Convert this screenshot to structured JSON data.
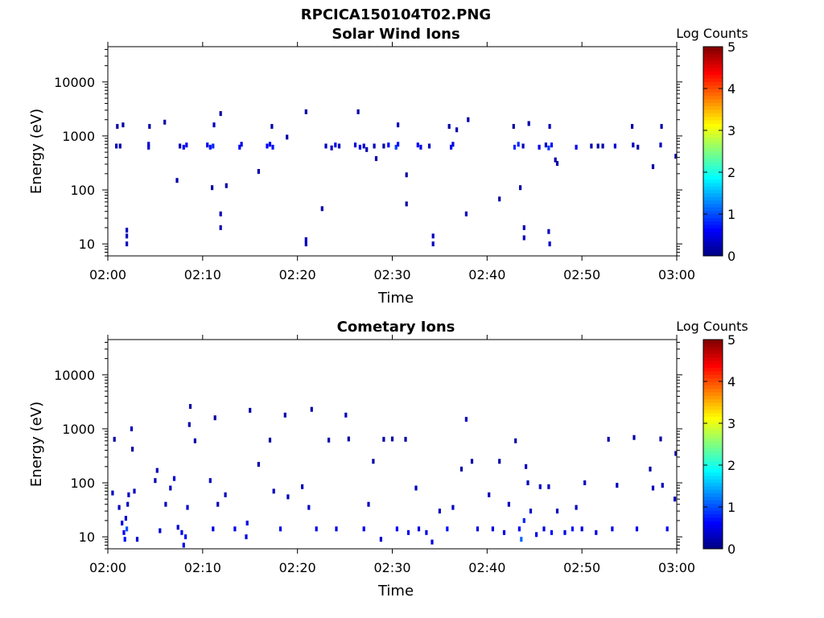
{
  "figure": {
    "filename": "RPCICA150104T02.PNG"
  },
  "chart_data": [
    {
      "type": "heatmap",
      "title": "Solar Wind Ions",
      "xlabel": "Time",
      "ylabel": "Energy (eV)",
      "xlim": [
        "02:00",
        "03:00"
      ],
      "ylim": [
        6,
        45000
      ],
      "y_scale": "log",
      "x_ticks": [
        "02:00",
        "02:10",
        "02:20",
        "02:30",
        "02:40",
        "02:50",
        "03:00"
      ],
      "y_ticks": [
        {
          "value": 10,
          "label": "10"
        },
        {
          "value": 100,
          "label": "100"
        },
        {
          "value": 1000,
          "label": "1000"
        },
        {
          "value": 10000,
          "label": "10000"
        }
      ],
      "colorbar": {
        "label": "Log Counts",
        "min": 0,
        "max": 5,
        "ticks": [
          "0",
          "1",
          "2",
          "3",
          "4",
          "5"
        ],
        "colormap": "jet"
      },
      "grid": false,
      "points": [
        {
          "t": 0.9,
          "e": 650,
          "v": 0.3
        },
        {
          "t": 1.0,
          "e": 1500,
          "v": 0.2
        },
        {
          "t": 1.3,
          "e": 650,
          "v": 0.2
        },
        {
          "t": 1.6,
          "e": 1600,
          "v": 0.2
        },
        {
          "t": 2.0,
          "e": 10,
          "v": 0.3
        },
        {
          "t": 2.0,
          "e": 14,
          "v": 0.3
        },
        {
          "t": 2.0,
          "e": 18,
          "v": 0.3
        },
        {
          "t": 4.3,
          "e": 620,
          "v": 0.4
        },
        {
          "t": 4.3,
          "e": 700,
          "v": 0.4
        },
        {
          "t": 4.4,
          "e": 1500,
          "v": 0.2
        },
        {
          "t": 6.0,
          "e": 1800,
          "v": 0.2
        },
        {
          "t": 7.3,
          "e": 150,
          "v": 0.2
        },
        {
          "t": 7.6,
          "e": 650,
          "v": 0.3
        },
        {
          "t": 8.0,
          "e": 620,
          "v": 0.6
        },
        {
          "t": 8.3,
          "e": 680,
          "v": 0.5
        },
        {
          "t": 10.5,
          "e": 680,
          "v": 0.5
        },
        {
          "t": 10.8,
          "e": 620,
          "v": 0.7
        },
        {
          "t": 11.0,
          "e": 110,
          "v": 0.2
        },
        {
          "t": 11.1,
          "e": 650,
          "v": 0.8
        },
        {
          "t": 11.2,
          "e": 1600,
          "v": 0.3
        },
        {
          "t": 11.9,
          "e": 2600,
          "v": 0.2
        },
        {
          "t": 11.9,
          "e": 36,
          "v": 0.3
        },
        {
          "t": 11.9,
          "e": 20,
          "v": 0.3
        },
        {
          "t": 12.5,
          "e": 120,
          "v": 0.2
        },
        {
          "t": 13.9,
          "e": 620,
          "v": 0.6
        },
        {
          "t": 14.1,
          "e": 700,
          "v": 0.5
        },
        {
          "t": 15.9,
          "e": 220,
          "v": 0.2
        },
        {
          "t": 16.8,
          "e": 650,
          "v": 0.6
        },
        {
          "t": 17.1,
          "e": 700,
          "v": 0.6
        },
        {
          "t": 17.3,
          "e": 1500,
          "v": 0.2
        },
        {
          "t": 17.4,
          "e": 620,
          "v": 0.7
        },
        {
          "t": 18.9,
          "e": 950,
          "v": 0.2
        },
        {
          "t": 20.9,
          "e": 2800,
          "v": 0.2
        },
        {
          "t": 20.9,
          "e": 10,
          "v": 0.3
        },
        {
          "t": 20.9,
          "e": 12,
          "v": 0.3
        },
        {
          "t": 22.6,
          "e": 45,
          "v": 0.2
        },
        {
          "t": 23.0,
          "e": 650,
          "v": 0.3
        },
        {
          "t": 23.6,
          "e": 600,
          "v": 0.3
        },
        {
          "t": 24.0,
          "e": 680,
          "v": 0.5
        },
        {
          "t": 24.4,
          "e": 650,
          "v": 0.3
        },
        {
          "t": 26.1,
          "e": 680,
          "v": 0.4
        },
        {
          "t": 26.4,
          "e": 2800,
          "v": 0.2
        },
        {
          "t": 26.6,
          "e": 620,
          "v": 0.6
        },
        {
          "t": 27.0,
          "e": 650,
          "v": 0.4
        },
        {
          "t": 27.3,
          "e": 560,
          "v": 0.2
        },
        {
          "t": 28.1,
          "e": 650,
          "v": 0.3
        },
        {
          "t": 28.3,
          "e": 380,
          "v": 0.2
        },
        {
          "t": 29.1,
          "e": 650,
          "v": 0.2
        },
        {
          "t": 29.6,
          "e": 680,
          "v": 0.6
        },
        {
          "t": 30.4,
          "e": 620,
          "v": 0.9
        },
        {
          "t": 30.6,
          "e": 700,
          "v": 0.7
        },
        {
          "t": 30.6,
          "e": 1600,
          "v": 0.3
        },
        {
          "t": 31.5,
          "e": 190,
          "v": 0.2
        },
        {
          "t": 31.5,
          "e": 55,
          "v": 0.2
        },
        {
          "t": 32.7,
          "e": 680,
          "v": 0.6
        },
        {
          "t": 33.0,
          "e": 620,
          "v": 0.5
        },
        {
          "t": 33.9,
          "e": 650,
          "v": 0.3
        },
        {
          "t": 34.3,
          "e": 10,
          "v": 0.3
        },
        {
          "t": 34.3,
          "e": 14,
          "v": 0.3
        },
        {
          "t": 36.0,
          "e": 1500,
          "v": 0.2
        },
        {
          "t": 36.2,
          "e": 620,
          "v": 0.6
        },
        {
          "t": 36.4,
          "e": 700,
          "v": 0.5
        },
        {
          "t": 36.8,
          "e": 1300,
          "v": 0.2
        },
        {
          "t": 37.8,
          "e": 36,
          "v": 0.3
        },
        {
          "t": 38.0,
          "e": 2000,
          "v": 0.2
        },
        {
          "t": 41.3,
          "e": 68,
          "v": 0.2
        },
        {
          "t": 42.8,
          "e": 1500,
          "v": 0.2
        },
        {
          "t": 42.9,
          "e": 620,
          "v": 0.8
        },
        {
          "t": 43.3,
          "e": 700,
          "v": 0.8
        },
        {
          "t": 43.5,
          "e": 110,
          "v": 0.2
        },
        {
          "t": 43.8,
          "e": 650,
          "v": 0.3
        },
        {
          "t": 43.9,
          "e": 13,
          "v": 0.3
        },
        {
          "t": 43.9,
          "e": 20,
          "v": 0.3
        },
        {
          "t": 44.4,
          "e": 1700,
          "v": 0.2
        },
        {
          "t": 45.5,
          "e": 620,
          "v": 0.5
        },
        {
          "t": 46.2,
          "e": 680,
          "v": 0.3
        },
        {
          "t": 46.5,
          "e": 600,
          "v": 0.9
        },
        {
          "t": 46.6,
          "e": 1500,
          "v": 0.3
        },
        {
          "t": 46.5,
          "e": 17,
          "v": 0.3
        },
        {
          "t": 46.6,
          "e": 10,
          "v": 0.4
        },
        {
          "t": 46.8,
          "e": 680,
          "v": 0.7
        },
        {
          "t": 47.2,
          "e": 360,
          "v": 0.2
        },
        {
          "t": 47.4,
          "e": 310,
          "v": 0.2
        },
        {
          "t": 49.4,
          "e": 620,
          "v": 0.5
        },
        {
          "t": 51.0,
          "e": 650,
          "v": 0.2
        },
        {
          "t": 51.7,
          "e": 650,
          "v": 0.2
        },
        {
          "t": 52.2,
          "e": 650,
          "v": 0.2
        },
        {
          "t": 53.5,
          "e": 650,
          "v": 0.4
        },
        {
          "t": 55.3,
          "e": 1500,
          "v": 0.2
        },
        {
          "t": 55.4,
          "e": 680,
          "v": 0.3
        },
        {
          "t": 55.9,
          "e": 620,
          "v": 0.2
        },
        {
          "t": 57.5,
          "e": 270,
          "v": 0.2
        },
        {
          "t": 58.4,
          "e": 1500,
          "v": 0.2
        },
        {
          "t": 58.3,
          "e": 680,
          "v": 0.3
        },
        {
          "t": 59.9,
          "e": 420,
          "v": 0.2
        }
      ]
    },
    {
      "type": "heatmap",
      "title": "Cometary Ions",
      "xlabel": "Time",
      "ylabel": "Energy (eV)",
      "xlim": [
        "02:00",
        "03:00"
      ],
      "ylim": [
        6,
        45000
      ],
      "y_scale": "log",
      "x_ticks": [
        "02:00",
        "02:10",
        "02:20",
        "02:30",
        "02:40",
        "02:50",
        "03:00"
      ],
      "y_ticks": [
        {
          "value": 10,
          "label": "10"
        },
        {
          "value": 100,
          "label": "100"
        },
        {
          "value": 1000,
          "label": "1000"
        },
        {
          "value": 10000,
          "label": "10000"
        }
      ],
      "colorbar": {
        "label": "Log Counts",
        "min": 0,
        "max": 5,
        "ticks": [
          "0",
          "1",
          "2",
          "3",
          "4",
          "5"
        ],
        "colormap": "jet"
      },
      "grid": false,
      "points": [
        {
          "t": 0.5,
          "e": 65,
          "v": 0.3
        },
        {
          "t": 0.7,
          "e": 640,
          "v": 0.2
        },
        {
          "t": 1.2,
          "e": 35,
          "v": 0.3
        },
        {
          "t": 1.5,
          "e": 18,
          "v": 0.5
        },
        {
          "t": 1.7,
          "e": 12,
          "v": 0.6
        },
        {
          "t": 1.8,
          "e": 9,
          "v": 0.7
        },
        {
          "t": 1.9,
          "e": 22,
          "v": 0.4
        },
        {
          "t": 2.0,
          "e": 14,
          "v": 1.0
        },
        {
          "t": 2.1,
          "e": 40,
          "v": 0.3
        },
        {
          "t": 2.2,
          "e": 60,
          "v": 0.3
        },
        {
          "t": 2.5,
          "e": 1000,
          "v": 0.3
        },
        {
          "t": 2.6,
          "e": 420,
          "v": 0.2
        },
        {
          "t": 2.8,
          "e": 70,
          "v": 0.3
        },
        {
          "t": 3.1,
          "e": 9,
          "v": 0.4
        },
        {
          "t": 5.0,
          "e": 110,
          "v": 0.3
        },
        {
          "t": 5.2,
          "e": 170,
          "v": 0.3
        },
        {
          "t": 5.5,
          "e": 13,
          "v": 0.4
        },
        {
          "t": 6.1,
          "e": 40,
          "v": 0.3
        },
        {
          "t": 6.6,
          "e": 80,
          "v": 0.3
        },
        {
          "t": 7.0,
          "e": 120,
          "v": 0.4
        },
        {
          "t": 7.4,
          "e": 15,
          "v": 0.4
        },
        {
          "t": 7.8,
          "e": 12,
          "v": 0.5
        },
        {
          "t": 8.0,
          "e": 7,
          "v": 0.5
        },
        {
          "t": 8.2,
          "e": 10,
          "v": 0.6
        },
        {
          "t": 8.4,
          "e": 35,
          "v": 0.4
        },
        {
          "t": 8.6,
          "e": 1200,
          "v": 0.2
        },
        {
          "t": 8.7,
          "e": 2600,
          "v": 0.2
        },
        {
          "t": 9.2,
          "e": 600,
          "v": 0.2
        },
        {
          "t": 10.8,
          "e": 110,
          "v": 0.3
        },
        {
          "t": 11.1,
          "e": 14,
          "v": 0.5
        },
        {
          "t": 11.3,
          "e": 1600,
          "v": 0.2
        },
        {
          "t": 11.6,
          "e": 40,
          "v": 0.3
        },
        {
          "t": 12.4,
          "e": 60,
          "v": 0.3
        },
        {
          "t": 13.4,
          "e": 14,
          "v": 0.5
        },
        {
          "t": 14.6,
          "e": 10,
          "v": 0.5
        },
        {
          "t": 14.7,
          "e": 18,
          "v": 0.5
        },
        {
          "t": 15.0,
          "e": 2200,
          "v": 0.2
        },
        {
          "t": 15.9,
          "e": 220,
          "v": 0.2
        },
        {
          "t": 17.1,
          "e": 620,
          "v": 0.2
        },
        {
          "t": 17.5,
          "e": 70,
          "v": 0.3
        },
        {
          "t": 18.2,
          "e": 14,
          "v": 0.5
        },
        {
          "t": 18.7,
          "e": 1800,
          "v": 0.2
        },
        {
          "t": 19.0,
          "e": 55,
          "v": 0.3
        },
        {
          "t": 20.5,
          "e": 85,
          "v": 0.3
        },
        {
          "t": 21.2,
          "e": 35,
          "v": 0.3
        },
        {
          "t": 21.5,
          "e": 2300,
          "v": 0.2
        },
        {
          "t": 22.0,
          "e": 14,
          "v": 0.5
        },
        {
          "t": 23.3,
          "e": 620,
          "v": 0.2
        },
        {
          "t": 24.1,
          "e": 14,
          "v": 0.5
        },
        {
          "t": 25.1,
          "e": 1800,
          "v": 0.3
        },
        {
          "t": 25.4,
          "e": 650,
          "v": 0.2
        },
        {
          "t": 27.0,
          "e": 14,
          "v": 0.6
        },
        {
          "t": 27.5,
          "e": 40,
          "v": 0.3
        },
        {
          "t": 28.0,
          "e": 250,
          "v": 0.2
        },
        {
          "t": 28.8,
          "e": 9,
          "v": 0.4
        },
        {
          "t": 29.1,
          "e": 640,
          "v": 0.2
        },
        {
          "t": 30.0,
          "e": 650,
          "v": 0.2
        },
        {
          "t": 30.5,
          "e": 14,
          "v": 0.6
        },
        {
          "t": 31.7,
          "e": 12,
          "v": 0.5
        },
        {
          "t": 31.4,
          "e": 640,
          "v": 0.2
        },
        {
          "t": 32.5,
          "e": 80,
          "v": 0.3
        },
        {
          "t": 32.8,
          "e": 14,
          "v": 0.5
        },
        {
          "t": 33.6,
          "e": 12,
          "v": 0.5
        },
        {
          "t": 34.2,
          "e": 8,
          "v": 0.5
        },
        {
          "t": 35.0,
          "e": 30,
          "v": 0.3
        },
        {
          "t": 35.8,
          "e": 14,
          "v": 0.7
        },
        {
          "t": 36.4,
          "e": 35,
          "v": 0.3
        },
        {
          "t": 37.3,
          "e": 180,
          "v": 0.2
        },
        {
          "t": 37.8,
          "e": 1500,
          "v": 0.3
        },
        {
          "t": 38.4,
          "e": 250,
          "v": 0.2
        },
        {
          "t": 39.0,
          "e": 14,
          "v": 0.5
        },
        {
          "t": 40.2,
          "e": 60,
          "v": 0.3
        },
        {
          "t": 40.6,
          "e": 14,
          "v": 0.5
        },
        {
          "t": 41.3,
          "e": 250,
          "v": 0.2
        },
        {
          "t": 41.8,
          "e": 12,
          "v": 0.5
        },
        {
          "t": 42.3,
          "e": 40,
          "v": 0.3
        },
        {
          "t": 43.0,
          "e": 600,
          "v": 0.2
        },
        {
          "t": 43.4,
          "e": 14,
          "v": 0.6
        },
        {
          "t": 43.6,
          "e": 9,
          "v": 1.1
        },
        {
          "t": 43.9,
          "e": 20,
          "v": 0.8
        },
        {
          "t": 44.1,
          "e": 200,
          "v": 0.3
        },
        {
          "t": 44.3,
          "e": 100,
          "v": 0.3
        },
        {
          "t": 44.6,
          "e": 30,
          "v": 0.4
        },
        {
          "t": 45.2,
          "e": 11,
          "v": 0.5
        },
        {
          "t": 45.6,
          "e": 85,
          "v": 0.3
        },
        {
          "t": 46.0,
          "e": 14,
          "v": 0.5
        },
        {
          "t": 46.5,
          "e": 85,
          "v": 0.3
        },
        {
          "t": 46.8,
          "e": 12,
          "v": 0.6
        },
        {
          "t": 47.4,
          "e": 30,
          "v": 0.3
        },
        {
          "t": 48.2,
          "e": 12,
          "v": 0.5
        },
        {
          "t": 49.0,
          "e": 14,
          "v": 0.7
        },
        {
          "t": 49.4,
          "e": 35,
          "v": 0.3
        },
        {
          "t": 50.0,
          "e": 14,
          "v": 0.5
        },
        {
          "t": 50.3,
          "e": 100,
          "v": 0.3
        },
        {
          "t": 51.5,
          "e": 12,
          "v": 0.5
        },
        {
          "t": 52.8,
          "e": 640,
          "v": 0.2
        },
        {
          "t": 53.2,
          "e": 14,
          "v": 0.5
        },
        {
          "t": 53.7,
          "e": 90,
          "v": 0.3
        },
        {
          "t": 55.5,
          "e": 690,
          "v": 0.2
        },
        {
          "t": 55.8,
          "e": 14,
          "v": 0.5
        },
        {
          "t": 57.2,
          "e": 180,
          "v": 0.2
        },
        {
          "t": 57.5,
          "e": 80,
          "v": 0.3
        },
        {
          "t": 58.3,
          "e": 650,
          "v": 0.2
        },
        {
          "t": 58.5,
          "e": 90,
          "v": 0.3
        },
        {
          "t": 59.0,
          "e": 14,
          "v": 0.5
        },
        {
          "t": 59.8,
          "e": 50,
          "v": 0.3
        },
        {
          "t": 59.9,
          "e": 350,
          "v": 0.2
        }
      ]
    }
  ]
}
